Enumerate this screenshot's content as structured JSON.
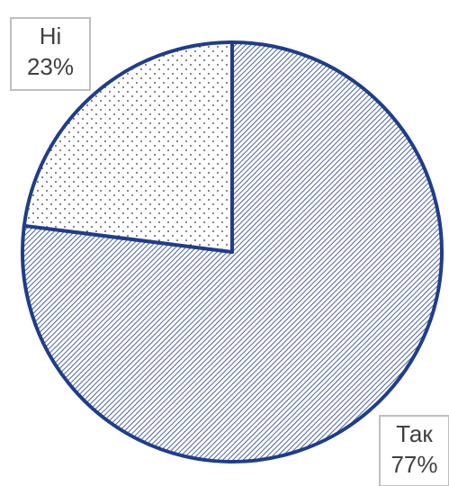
{
  "chart_data": {
    "type": "pie",
    "categories": [
      "Так",
      "Ні"
    ],
    "values": [
      77,
      23
    ],
    "value_labels": [
      "77%",
      "23%"
    ],
    "color": "#1f3d8a",
    "patterns": [
      "hatch",
      "dots"
    ]
  }
}
